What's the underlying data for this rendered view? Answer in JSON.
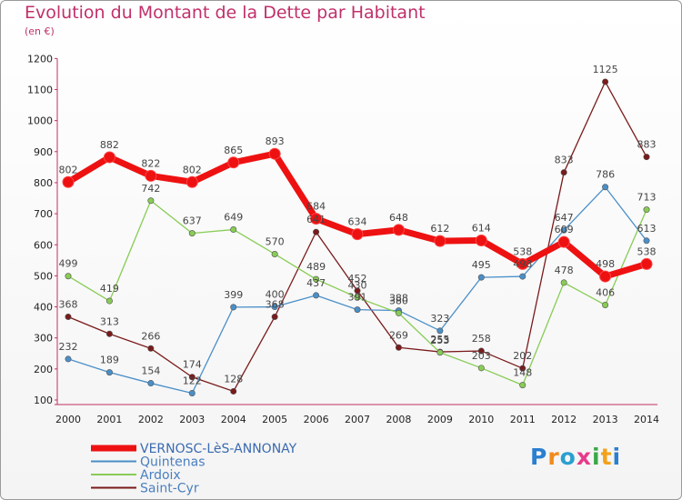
{
  "chart_data": {
    "type": "line",
    "title": "Evolution du Montant de la Dette par Habitant",
    "unit": "(en €)",
    "categories": [
      "2000",
      "2001",
      "2002",
      "2003",
      "2004",
      "2005",
      "2006",
      "2007",
      "2008",
      "2009",
      "2010",
      "2011",
      "2012",
      "2013",
      "2014"
    ],
    "ylim": [
      100,
      1200
    ],
    "yticks": [
      100,
      200,
      300,
      400,
      500,
      600,
      700,
      800,
      900,
      1000,
      1100,
      1200
    ],
    "grid": false,
    "legend_position": "bottom-left",
    "series": [
      {
        "name": "VERNOSC-LèS-ANNONAY",
        "color": "#ee1111",
        "values": [
          802,
          882,
          822,
          802,
          865,
          893,
          684,
          634,
          648,
          612,
          614,
          538,
          609,
          498,
          538
        ]
      },
      {
        "name": "Quintenas",
        "color": "#4a8fc8",
        "values": [
          232,
          189,
          154,
          122,
          399,
          400,
          437,
          391,
          388,
          323,
          495,
          498,
          647,
          786,
          613
        ]
      },
      {
        "name": "Ardoix",
        "color": "#88cc55",
        "values": [
          499,
          419,
          742,
          637,
          649,
          570,
          489,
          430,
          380,
          253,
          203,
          148,
          478,
          406,
          713
        ]
      },
      {
        "name": "Saint-Cyr",
        "color": "#7a1a1a",
        "values": [
          368,
          313,
          266,
          174,
          128,
          368,
          641,
          452,
          269,
          255,
          258,
          202,
          833,
          1125,
          883
        ]
      }
    ]
  },
  "logo_text": "Proxiti"
}
